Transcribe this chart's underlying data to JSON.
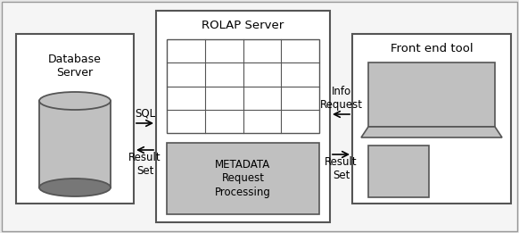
{
  "bg_color": "#e8e8e8",
  "outer_bg": "#e8e8e8",
  "box_edge_color": "#555555",
  "box_fill_color": "#ffffff",
  "gray_fill": "#aaaaaa",
  "dark_gray": "#777777",
  "light_gray": "#c0c0c0",
  "db_server_label": "Database\nServer",
  "rolap_label": "ROLAP Server",
  "metadata_label": "METADATA\nRequest\nProcessing",
  "frontend_label": "Front end tool",
  "sql_label": "SQL",
  "result_set_left_label": "Result\nSet",
  "info_request_label": "Info\nRequest",
  "result_set_right_label": "Result\nSet"
}
